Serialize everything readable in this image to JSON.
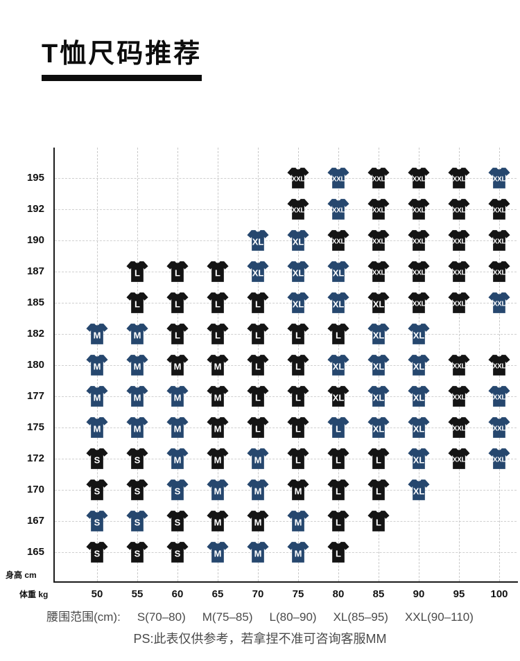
{
  "page": {
    "title": "T恤尺码推荐",
    "footer": {
      "waist_label": "腰围范围(cm):",
      "waist_ranges": [
        "S(70–80)",
        "M(75–85)",
        "L(80–90)",
        "XL(85–95)",
        "XXL(90–110)"
      ],
      "note": "PS:此表仅供参考，若拿捏不准可咨询客服MM"
    }
  },
  "chart_data": {
    "type": "heatmap",
    "title": "T恤尺码推荐",
    "xlabel": "体重 kg",
    "ylabel": "身高 cm",
    "x_ticks": [
      50,
      55,
      60,
      65,
      70,
      75,
      80,
      85,
      90,
      95,
      100
    ],
    "y_ticks": [
      195,
      192,
      190,
      187,
      185,
      182,
      180,
      177,
      175,
      172,
      170,
      167,
      165
    ],
    "grid": "dashed",
    "icon": "tshirt-icon",
    "colors": {
      "navy": "#26476e",
      "black": "#141414"
    },
    "cells": [
      {
        "height": 195,
        "weight": 75,
        "size": "XXL",
        "color": "black"
      },
      {
        "height": 195,
        "weight": 80,
        "size": "XXL",
        "color": "navy"
      },
      {
        "height": 195,
        "weight": 85,
        "size": "XXL",
        "color": "black"
      },
      {
        "height": 195,
        "weight": 90,
        "size": "XXL",
        "color": "black"
      },
      {
        "height": 195,
        "weight": 95,
        "size": "XXL",
        "color": "black"
      },
      {
        "height": 195,
        "weight": 100,
        "size": "XXL",
        "color": "navy"
      },
      {
        "height": 192,
        "weight": 75,
        "size": "XXL",
        "color": "black"
      },
      {
        "height": 192,
        "weight": 80,
        "size": "XXL",
        "color": "navy"
      },
      {
        "height": 192,
        "weight": 85,
        "size": "XXL",
        "color": "black"
      },
      {
        "height": 192,
        "weight": 90,
        "size": "XXL",
        "color": "black"
      },
      {
        "height": 192,
        "weight": 95,
        "size": "XXL",
        "color": "black"
      },
      {
        "height": 192,
        "weight": 100,
        "size": "XXL",
        "color": "black"
      },
      {
        "height": 190,
        "weight": 70,
        "size": "XL",
        "color": "navy"
      },
      {
        "height": 190,
        "weight": 75,
        "size": "XL",
        "color": "navy"
      },
      {
        "height": 190,
        "weight": 80,
        "size": "XXL",
        "color": "black"
      },
      {
        "height": 190,
        "weight": 85,
        "size": "XXL",
        "color": "black"
      },
      {
        "height": 190,
        "weight": 90,
        "size": "XXL",
        "color": "black"
      },
      {
        "height": 190,
        "weight": 95,
        "size": "XXL",
        "color": "black"
      },
      {
        "height": 190,
        "weight": 100,
        "size": "XXL",
        "color": "black"
      },
      {
        "height": 187,
        "weight": 55,
        "size": "L",
        "color": "black"
      },
      {
        "height": 187,
        "weight": 60,
        "size": "L",
        "color": "black"
      },
      {
        "height": 187,
        "weight": 65,
        "size": "L",
        "color": "black"
      },
      {
        "height": 187,
        "weight": 70,
        "size": "XL",
        "color": "navy"
      },
      {
        "height": 187,
        "weight": 75,
        "size": "XL",
        "color": "navy"
      },
      {
        "height": 187,
        "weight": 80,
        "size": "XL",
        "color": "navy"
      },
      {
        "height": 187,
        "weight": 85,
        "size": "XXL",
        "color": "black"
      },
      {
        "height": 187,
        "weight": 90,
        "size": "XXL",
        "color": "black"
      },
      {
        "height": 187,
        "weight": 95,
        "size": "XXL",
        "color": "black"
      },
      {
        "height": 187,
        "weight": 100,
        "size": "XXL",
        "color": "black"
      },
      {
        "height": 185,
        "weight": 55,
        "size": "L",
        "color": "black"
      },
      {
        "height": 185,
        "weight": 60,
        "size": "L",
        "color": "black"
      },
      {
        "height": 185,
        "weight": 65,
        "size": "L",
        "color": "black"
      },
      {
        "height": 185,
        "weight": 70,
        "size": "L",
        "color": "black"
      },
      {
        "height": 185,
        "weight": 75,
        "size": "XL",
        "color": "navy"
      },
      {
        "height": 185,
        "weight": 80,
        "size": "XL",
        "color": "navy"
      },
      {
        "height": 185,
        "weight": 85,
        "size": "XL",
        "color": "black"
      },
      {
        "height": 185,
        "weight": 90,
        "size": "XXL",
        "color": "black"
      },
      {
        "height": 185,
        "weight": 95,
        "size": "XXL",
        "color": "black"
      },
      {
        "height": 185,
        "weight": 100,
        "size": "XXL",
        "color": "navy"
      },
      {
        "height": 182,
        "weight": 50,
        "size": "M",
        "color": "navy"
      },
      {
        "height": 182,
        "weight": 55,
        "size": "M",
        "color": "navy"
      },
      {
        "height": 182,
        "weight": 60,
        "size": "L",
        "color": "black"
      },
      {
        "height": 182,
        "weight": 65,
        "size": "L",
        "color": "black"
      },
      {
        "height": 182,
        "weight": 70,
        "size": "L",
        "color": "black"
      },
      {
        "height": 182,
        "weight": 75,
        "size": "L",
        "color": "black"
      },
      {
        "height": 182,
        "weight": 80,
        "size": "L",
        "color": "black"
      },
      {
        "height": 182,
        "weight": 85,
        "size": "XL",
        "color": "navy"
      },
      {
        "height": 182,
        "weight": 90,
        "size": "XL",
        "color": "navy"
      },
      {
        "height": 180,
        "weight": 50,
        "size": "M",
        "color": "navy"
      },
      {
        "height": 180,
        "weight": 55,
        "size": "M",
        "color": "navy"
      },
      {
        "height": 180,
        "weight": 60,
        "size": "M",
        "color": "black"
      },
      {
        "height": 180,
        "weight": 65,
        "size": "M",
        "color": "black"
      },
      {
        "height": 180,
        "weight": 70,
        "size": "L",
        "color": "black"
      },
      {
        "height": 180,
        "weight": 75,
        "size": "L",
        "color": "black"
      },
      {
        "height": 180,
        "weight": 80,
        "size": "XL",
        "color": "navy"
      },
      {
        "height": 180,
        "weight": 85,
        "size": "XL",
        "color": "navy"
      },
      {
        "height": 180,
        "weight": 90,
        "size": "XL",
        "color": "navy"
      },
      {
        "height": 180,
        "weight": 95,
        "size": "XXL",
        "color": "black"
      },
      {
        "height": 180,
        "weight": 100,
        "size": "XXL",
        "color": "black"
      },
      {
        "height": 177,
        "weight": 50,
        "size": "M",
        "color": "navy"
      },
      {
        "height": 177,
        "weight": 55,
        "size": "M",
        "color": "navy"
      },
      {
        "height": 177,
        "weight": 60,
        "size": "M",
        "color": "navy"
      },
      {
        "height": 177,
        "weight": 65,
        "size": "M",
        "color": "black"
      },
      {
        "height": 177,
        "weight": 70,
        "size": "L",
        "color": "black"
      },
      {
        "height": 177,
        "weight": 75,
        "size": "L",
        "color": "black"
      },
      {
        "height": 177,
        "weight": 80,
        "size": "XL",
        "color": "black"
      },
      {
        "height": 177,
        "weight": 85,
        "size": "XL",
        "color": "navy"
      },
      {
        "height": 177,
        "weight": 90,
        "size": "XL",
        "color": "navy"
      },
      {
        "height": 177,
        "weight": 95,
        "size": "XXL",
        "color": "black"
      },
      {
        "height": 177,
        "weight": 100,
        "size": "XXL",
        "color": "navy"
      },
      {
        "height": 175,
        "weight": 50,
        "size": "M",
        "color": "navy"
      },
      {
        "height": 175,
        "weight": 55,
        "size": "M",
        "color": "navy"
      },
      {
        "height": 175,
        "weight": 60,
        "size": "M",
        "color": "navy"
      },
      {
        "height": 175,
        "weight": 65,
        "size": "M",
        "color": "black"
      },
      {
        "height": 175,
        "weight": 70,
        "size": "L",
        "color": "black"
      },
      {
        "height": 175,
        "weight": 75,
        "size": "L",
        "color": "black"
      },
      {
        "height": 175,
        "weight": 80,
        "size": "L",
        "color": "navy"
      },
      {
        "height": 175,
        "weight": 85,
        "size": "XL",
        "color": "navy"
      },
      {
        "height": 175,
        "weight": 90,
        "size": "XL",
        "color": "navy"
      },
      {
        "height": 175,
        "weight": 95,
        "size": "XXL",
        "color": "black"
      },
      {
        "height": 175,
        "weight": 100,
        "size": "XXL",
        "color": "navy"
      },
      {
        "height": 172,
        "weight": 50,
        "size": "S",
        "color": "black"
      },
      {
        "height": 172,
        "weight": 55,
        "size": "S",
        "color": "black"
      },
      {
        "height": 172,
        "weight": 60,
        "size": "M",
        "color": "navy"
      },
      {
        "height": 172,
        "weight": 65,
        "size": "M",
        "color": "black"
      },
      {
        "height": 172,
        "weight": 70,
        "size": "M",
        "color": "navy"
      },
      {
        "height": 172,
        "weight": 75,
        "size": "L",
        "color": "black"
      },
      {
        "height": 172,
        "weight": 80,
        "size": "L",
        "color": "black"
      },
      {
        "height": 172,
        "weight": 85,
        "size": "L",
        "color": "black"
      },
      {
        "height": 172,
        "weight": 90,
        "size": "XL",
        "color": "navy"
      },
      {
        "height": 172,
        "weight": 95,
        "size": "XXL",
        "color": "black"
      },
      {
        "height": 172,
        "weight": 100,
        "size": "XXL",
        "color": "navy"
      },
      {
        "height": 170,
        "weight": 50,
        "size": "S",
        "color": "black"
      },
      {
        "height": 170,
        "weight": 55,
        "size": "S",
        "color": "black"
      },
      {
        "height": 170,
        "weight": 60,
        "size": "S",
        "color": "navy"
      },
      {
        "height": 170,
        "weight": 65,
        "size": "M",
        "color": "navy"
      },
      {
        "height": 170,
        "weight": 70,
        "size": "M",
        "color": "navy"
      },
      {
        "height": 170,
        "weight": 75,
        "size": "M",
        "color": "black"
      },
      {
        "height": 170,
        "weight": 80,
        "size": "L",
        "color": "black"
      },
      {
        "height": 170,
        "weight": 85,
        "size": "L",
        "color": "black"
      },
      {
        "height": 170,
        "weight": 90,
        "size": "XL",
        "color": "navy"
      },
      {
        "height": 167,
        "weight": 50,
        "size": "S",
        "color": "navy"
      },
      {
        "height": 167,
        "weight": 55,
        "size": "S",
        "color": "navy"
      },
      {
        "height": 167,
        "weight": 60,
        "size": "S",
        "color": "black"
      },
      {
        "height": 167,
        "weight": 65,
        "size": "M",
        "color": "black"
      },
      {
        "height": 167,
        "weight": 70,
        "size": "M",
        "color": "black"
      },
      {
        "height": 167,
        "weight": 75,
        "size": "M",
        "color": "navy"
      },
      {
        "height": 167,
        "weight": 80,
        "size": "L",
        "color": "black"
      },
      {
        "height": 167,
        "weight": 85,
        "size": "L",
        "color": "black"
      },
      {
        "height": 165,
        "weight": 50,
        "size": "S",
        "color": "black"
      },
      {
        "height": 165,
        "weight": 55,
        "size": "S",
        "color": "black"
      },
      {
        "height": 165,
        "weight": 60,
        "size": "S",
        "color": "black"
      },
      {
        "height": 165,
        "weight": 65,
        "size": "M",
        "color": "navy"
      },
      {
        "height": 165,
        "weight": 70,
        "size": "M",
        "color": "navy"
      },
      {
        "height": 165,
        "weight": 75,
        "size": "M",
        "color": "navy"
      },
      {
        "height": 165,
        "weight": 80,
        "size": "L",
        "color": "black"
      }
    ]
  }
}
